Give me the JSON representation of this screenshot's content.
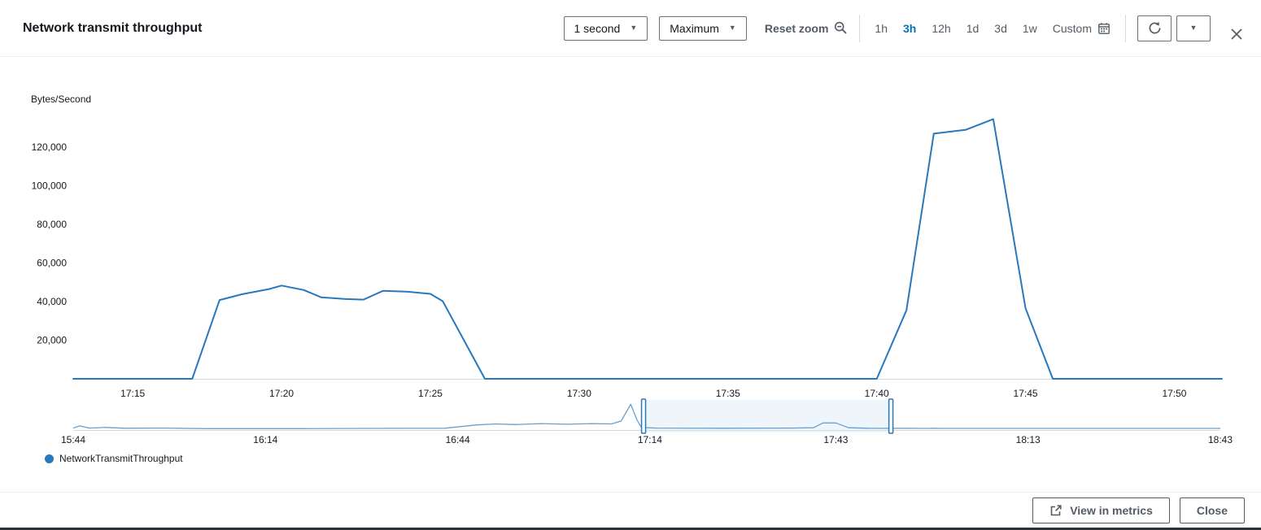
{
  "header": {
    "title": "Network transmit throughput",
    "period_value": "1 second",
    "statistic_value": "Maximum",
    "reset_zoom_label": "Reset zoom",
    "ranges": [
      {
        "label": "1h",
        "active": false
      },
      {
        "label": "3h",
        "active": true
      },
      {
        "label": "12h",
        "active": false
      },
      {
        "label": "1d",
        "active": false
      },
      {
        "label": "3d",
        "active": false
      },
      {
        "label": "1w",
        "active": false
      },
      {
        "label": "Custom",
        "active": false,
        "icon": "calendar"
      }
    ]
  },
  "legend": [
    {
      "label": "NetworkTransmitThroughput",
      "color": "#2878bd"
    }
  ],
  "footer": {
    "view_in_metrics_label": "View in metrics",
    "close_label": "Close"
  },
  "colors": {
    "accent": "#0073bb",
    "line": "#2878bd",
    "mini_line": "#6b9fc9",
    "brush_fill": "#eef6fc",
    "axis": "#d5dbdb",
    "text": "#16191f",
    "muted": "#545b64"
  },
  "icons": {
    "reset_zoom": "zoom-out-icon",
    "custom_range": "calendar-icon",
    "refresh": "refresh-icon",
    "refresh_options": "chevron-down-icon",
    "view_in_metrics": "external-link-icon",
    "close": "close-icon"
  },
  "chart_data": [
    {
      "type": "line",
      "title": "Network transmit throughput",
      "ylabel": "Bytes/Second",
      "xlabel": "",
      "xlim": [
        "17:13:00",
        "17:51:36"
      ],
      "ylim": [
        0,
        140000
      ],
      "grid": false,
      "legend_position": "bottom-left",
      "y_ticks": [
        20000,
        40000,
        60000,
        80000,
        100000,
        120000
      ],
      "x_ticks": [
        "17:15",
        "17:20",
        "17:25",
        "17:30",
        "17:35",
        "17:40",
        "17:45",
        "17:50"
      ],
      "series": [
        {
          "name": "NetworkTransmitThroughput",
          "color": "#2878bd",
          "points": [
            [
              "17:13:00",
              0
            ],
            [
              "17:17:00",
              0
            ],
            [
              "17:17:55",
              40800
            ],
            [
              "17:18:40",
              43800
            ],
            [
              "17:19:35",
              46500
            ],
            [
              "17:20:00",
              48300
            ],
            [
              "17:20:45",
              46000
            ],
            [
              "17:21:20",
              42200
            ],
            [
              "17:22:10",
              41300
            ],
            [
              "17:22:45",
              41000
            ],
            [
              "17:23:25",
              45600
            ],
            [
              "17:24:15",
              45100
            ],
            [
              "17:25:00",
              44000
            ],
            [
              "17:25:25",
              40200
            ],
            [
              "17:26:50",
              0
            ],
            [
              "17:40:00",
              0
            ],
            [
              "17:41:00",
              35500
            ],
            [
              "17:41:55",
              127000
            ],
            [
              "17:43:00",
              129000
            ],
            [
              "17:43:55",
              134500
            ],
            [
              "17:45:00",
              36500
            ],
            [
              "17:45:55",
              0
            ],
            [
              "17:51:36",
              0
            ]
          ]
        }
      ]
    },
    {
      "type": "line",
      "role": "timeline-brush",
      "xlim": [
        "15:44:00",
        "18:43:00"
      ],
      "ylim": [
        0,
        430000
      ],
      "x_ticks": [
        "15:44",
        "16:14",
        "16:44",
        "17:14",
        "17:43",
        "18:13",
        "18:43"
      ],
      "brush": [
        "17:13:00",
        "17:51:36"
      ],
      "series": [
        {
          "name": "NetworkTransmitThroughput",
          "color": "#6b9fc9",
          "points": [
            [
              "15:44:00",
              30000
            ],
            [
              "15:45:00",
              65000
            ],
            [
              "15:46:30",
              30000
            ],
            [
              "15:49:00",
              40000
            ],
            [
              "15:52:00",
              28000
            ],
            [
              "15:58:00",
              30000
            ],
            [
              "16:05:00",
              22000
            ],
            [
              "16:20:00",
              22000
            ],
            [
              "16:30:00",
              25000
            ],
            [
              "16:42:00",
              28000
            ],
            [
              "16:47:00",
              80000
            ],
            [
              "16:50:00",
              95000
            ],
            [
              "16:53:00",
              85000
            ],
            [
              "16:57:00",
              100000
            ],
            [
              "17:01:00",
              90000
            ],
            [
              "17:05:00",
              100000
            ],
            [
              "17:08:00",
              95000
            ],
            [
              "17:09:30",
              140000
            ],
            [
              "17:11:00",
              400000
            ],
            [
              "17:12:00",
              150000
            ],
            [
              "17:12:40",
              40000
            ],
            [
              "17:15:00",
              30000
            ],
            [
              "17:25:00",
              28000
            ],
            [
              "17:36:00",
              30000
            ],
            [
              "17:39:30",
              35000
            ],
            [
              "17:41:00",
              110000
            ],
            [
              "17:43:00",
              110000
            ],
            [
              "17:45:00",
              35000
            ],
            [
              "17:48:00",
              28000
            ],
            [
              "18:00:00",
              25000
            ],
            [
              "18:15:00",
              25000
            ],
            [
              "18:43:00",
              25000
            ]
          ]
        }
      ]
    }
  ]
}
